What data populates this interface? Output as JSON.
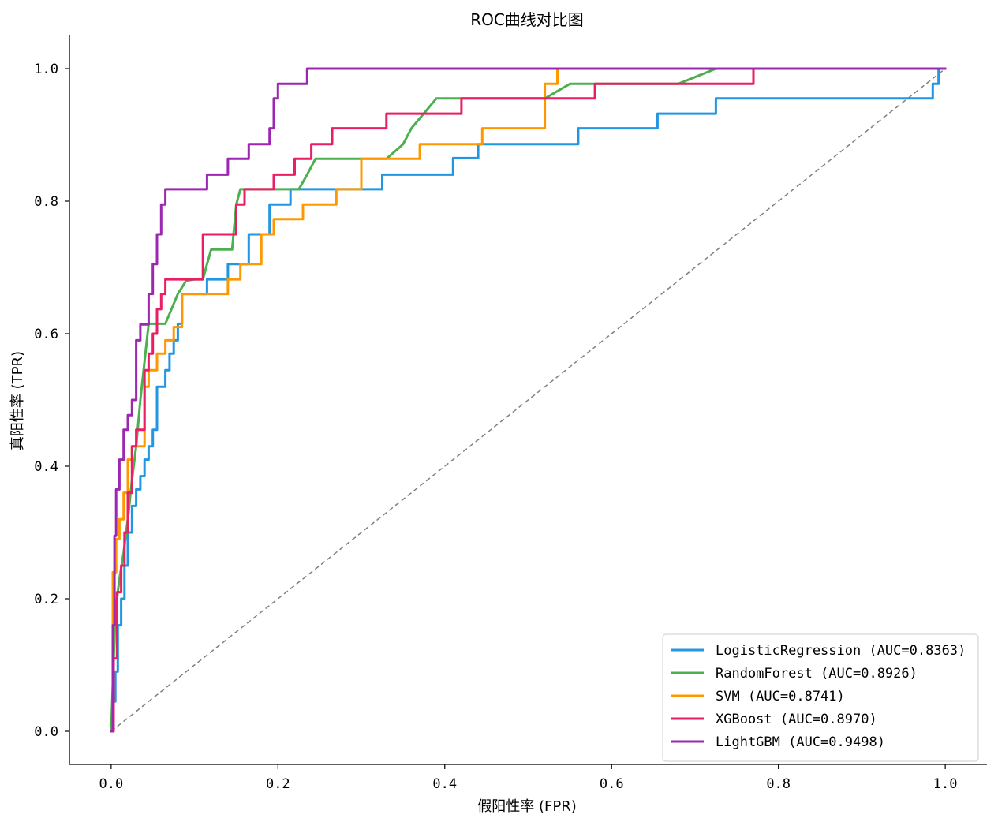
{
  "chart_data": {
    "type": "line",
    "title": "ROC曲线对比图",
    "xlabel": "假阳性率 (FPR)",
    "ylabel": "真阳性率 (TPR)",
    "xlim": [
      -0.05,
      1.05
    ],
    "ylim": [
      -0.05,
      1.05
    ],
    "xticks": [
      "0.0",
      "0.2",
      "0.4",
      "0.6",
      "0.8",
      "1.0"
    ],
    "yticks": [
      "0.0",
      "0.2",
      "0.4",
      "0.6",
      "0.8",
      "1.0"
    ],
    "grid": false,
    "legend_position": "lower-right",
    "diagonal": {
      "x": [
        0,
        1
      ],
      "y": [
        0,
        1
      ],
      "color": "#808080",
      "style": "dashed"
    },
    "series": [
      {
        "name": "LogisticRegression (AUC=0.8363)",
        "color": "#2196e3",
        "x": [
          0,
          0.002,
          0.002,
          0.005,
          0.005,
          0.008,
          0.008,
          0.012,
          0.012,
          0.016,
          0.016,
          0.02,
          0.02,
          0.025,
          0.025,
          0.03,
          0.03,
          0.035,
          0.035,
          0.04,
          0.04,
          0.045,
          0.045,
          0.05,
          0.05,
          0.055,
          0.055,
          0.065,
          0.065,
          0.07,
          0.07,
          0.075,
          0.075,
          0.08,
          0.08,
          0.085,
          0.085,
          0.115,
          0.115,
          0.14,
          0.14,
          0.165,
          0.165,
          0.19,
          0.19,
          0.215,
          0.215,
          0.27,
          0.27,
          0.325,
          0.325,
          0.41,
          0.41,
          0.44,
          0.44,
          0.56,
          0.56,
          0.655,
          0.655,
          0.725,
          0.725,
          0.985,
          0.985,
          0.992,
          0.992,
          1.0
        ],
        "y": [
          0,
          0,
          0.045,
          0.045,
          0.09,
          0.09,
          0.16,
          0.16,
          0.2,
          0.2,
          0.25,
          0.25,
          0.3,
          0.3,
          0.34,
          0.34,
          0.365,
          0.365,
          0.385,
          0.385,
          0.41,
          0.41,
          0.43,
          0.43,
          0.455,
          0.455,
          0.52,
          0.52,
          0.545,
          0.545,
          0.57,
          0.57,
          0.59,
          0.59,
          0.615,
          0.615,
          0.66,
          0.66,
          0.682,
          0.682,
          0.705,
          0.705,
          0.75,
          0.75,
          0.795,
          0.795,
          0.818,
          0.818,
          0.818,
          0.818,
          0.84,
          0.84,
          0.865,
          0.865,
          0.886,
          0.886,
          0.91,
          0.91,
          0.932,
          0.932,
          0.955,
          0.955,
          0.977,
          0.977,
          1.0,
          1.0
        ]
      },
      {
        "name": "RandomForest (AUC=0.8926)",
        "color": "#4caf50",
        "x": [
          0,
          0.005,
          0.01,
          0.015,
          0.02,
          0.025,
          0.03,
          0.035,
          0.045,
          0.065,
          0.08,
          0.09,
          0.1,
          0.11,
          0.115,
          0.12,
          0.145,
          0.15,
          0.155,
          0.165,
          0.2,
          0.225,
          0.235,
          0.245,
          0.33,
          0.35,
          0.36,
          0.39,
          0.52,
          0.55,
          0.68,
          0.725,
          1.0
        ],
        "y": [
          0,
          0.18,
          0.23,
          0.27,
          0.32,
          0.38,
          0.43,
          0.5,
          0.615,
          0.615,
          0.66,
          0.68,
          0.682,
          0.682,
          0.705,
          0.727,
          0.727,
          0.795,
          0.818,
          0.818,
          0.818,
          0.818,
          0.84,
          0.864,
          0.864,
          0.886,
          0.91,
          0.955,
          0.955,
          0.977,
          0.977,
          1.0,
          1.0
        ]
      },
      {
        "name": "SVM (AUC=0.8741)",
        "color": "#ff9800",
        "x": [
          0,
          0.002,
          0.002,
          0.006,
          0.006,
          0.01,
          0.01,
          0.015,
          0.015,
          0.02,
          0.02,
          0.025,
          0.025,
          0.03,
          0.03,
          0.04,
          0.04,
          0.045,
          0.045,
          0.055,
          0.055,
          0.065,
          0.065,
          0.075,
          0.075,
          0.085,
          0.085,
          0.14,
          0.14,
          0.155,
          0.155,
          0.18,
          0.18,
          0.195,
          0.195,
          0.23,
          0.23,
          0.27,
          0.27,
          0.3,
          0.3,
          0.37,
          0.37,
          0.445,
          0.445,
          0.52,
          0.52,
          0.535,
          0.535,
          1.0
        ],
        "y": [
          0,
          0,
          0.24,
          0.24,
          0.29,
          0.29,
          0.32,
          0.32,
          0.36,
          0.36,
          0.41,
          0.41,
          0.43,
          0.43,
          0.43,
          0.43,
          0.52,
          0.52,
          0.545,
          0.545,
          0.57,
          0.57,
          0.59,
          0.59,
          0.61,
          0.61,
          0.66,
          0.66,
          0.682,
          0.682,
          0.705,
          0.705,
          0.75,
          0.75,
          0.773,
          0.773,
          0.795,
          0.795,
          0.818,
          0.818,
          0.864,
          0.864,
          0.886,
          0.886,
          0.91,
          0.91,
          0.977,
          0.977,
          1.0,
          1.0
        ]
      },
      {
        "name": "XGBoost (AUC=0.8970)",
        "color": "#e91e63",
        "x": [
          0,
          0.003,
          0.003,
          0.007,
          0.007,
          0.012,
          0.012,
          0.016,
          0.016,
          0.02,
          0.02,
          0.025,
          0.025,
          0.03,
          0.03,
          0.04,
          0.04,
          0.045,
          0.045,
          0.05,
          0.05,
          0.055,
          0.055,
          0.06,
          0.06,
          0.065,
          0.065,
          0.11,
          0.11,
          0.15,
          0.15,
          0.16,
          0.16,
          0.195,
          0.195,
          0.22,
          0.22,
          0.24,
          0.24,
          0.265,
          0.265,
          0.33,
          0.33,
          0.42,
          0.42,
          0.515,
          0.515,
          0.58,
          0.58,
          0.615,
          0.615,
          0.77,
          0.77,
          1.0
        ],
        "y": [
          0,
          0,
          0.11,
          0.11,
          0.21,
          0.21,
          0.25,
          0.25,
          0.3,
          0.3,
          0.36,
          0.36,
          0.43,
          0.43,
          0.455,
          0.455,
          0.545,
          0.545,
          0.57,
          0.57,
          0.6,
          0.6,
          0.637,
          0.637,
          0.66,
          0.66,
          0.682,
          0.682,
          0.75,
          0.75,
          0.795,
          0.795,
          0.818,
          0.818,
          0.84,
          0.84,
          0.864,
          0.864,
          0.886,
          0.886,
          0.91,
          0.91,
          0.932,
          0.932,
          0.955,
          0.955,
          0.955,
          0.955,
          0.977,
          0.977,
          0.977,
          0.977,
          1.0,
          1.0
        ]
      },
      {
        "name": "LightGBM (AUC=0.9498)",
        "color": "#9c27b0",
        "x": [
          0,
          0.002,
          0.002,
          0.004,
          0.004,
          0.006,
          0.006,
          0.01,
          0.01,
          0.015,
          0.015,
          0.02,
          0.02,
          0.025,
          0.025,
          0.03,
          0.03,
          0.035,
          0.035,
          0.045,
          0.045,
          0.05,
          0.05,
          0.055,
          0.055,
          0.06,
          0.06,
          0.065,
          0.065,
          0.07,
          0.07,
          0.115,
          0.115,
          0.14,
          0.14,
          0.165,
          0.165,
          0.19,
          0.19,
          0.195,
          0.195,
          0.2,
          0.2,
          0.215,
          0.215,
          0.235,
          0.235,
          1.0
        ],
        "y": [
          0,
          0,
          0.16,
          0.16,
          0.295,
          0.295,
          0.365,
          0.365,
          0.41,
          0.41,
          0.455,
          0.455,
          0.477,
          0.477,
          0.5,
          0.5,
          0.59,
          0.59,
          0.614,
          0.614,
          0.66,
          0.66,
          0.705,
          0.705,
          0.75,
          0.75,
          0.795,
          0.795,
          0.818,
          0.818,
          0.818,
          0.818,
          0.84,
          0.84,
          0.864,
          0.864,
          0.886,
          0.886,
          0.91,
          0.91,
          0.955,
          0.955,
          0.977,
          0.977,
          0.977,
          0.977,
          1.0,
          1.0
        ]
      }
    ]
  }
}
